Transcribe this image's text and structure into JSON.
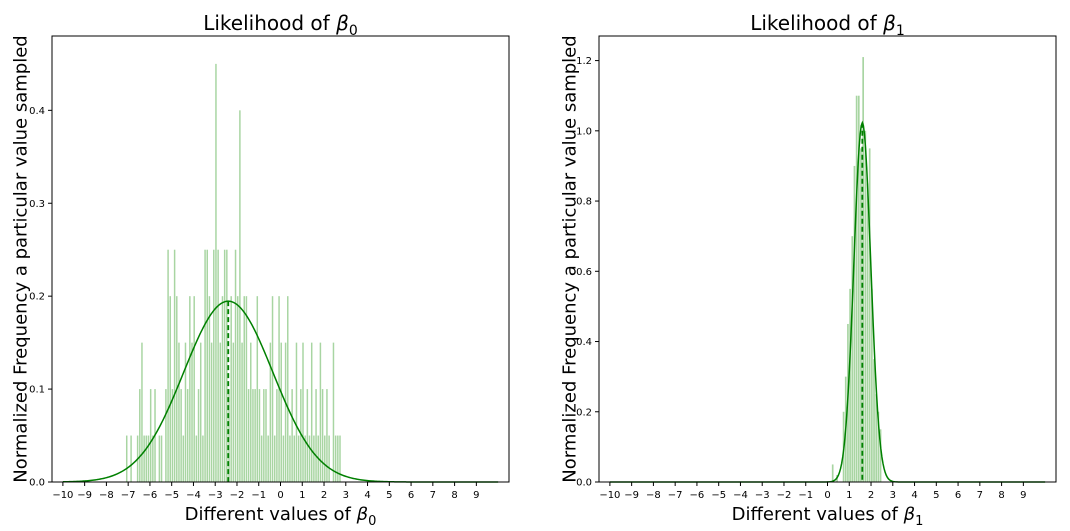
{
  "colors": {
    "bars": "#a8d5a2",
    "curve": "#008000",
    "axis": "#000000"
  },
  "chart_data": [
    {
      "type": "bar",
      "title_prefix": "Likelihood of ",
      "title_symbol": "β",
      "title_subscript": "0",
      "xlabel_prefix": "Different values of ",
      "xlabel_symbol": "β",
      "xlabel_subscript": "0",
      "ylabel": "Normalized Frequency a particular value sampled",
      "xlim": [
        -10.5,
        10.5
      ],
      "ylim": [
        0,
        0.48
      ],
      "xticks": [
        -10,
        -9,
        -8,
        -7,
        -6,
        -5,
        -4,
        -3,
        -2,
        -1,
        0,
        1,
        2,
        3,
        4,
        5,
        6,
        7,
        8,
        9
      ],
      "yticks": [
        0.0,
        0.1,
        0.2,
        0.3,
        0.4
      ],
      "ytick_labels": [
        "0.0",
        "0.1",
        "0.2",
        "0.3",
        "0.4"
      ],
      "bin_width": 0.091,
      "bars": [
        [
          -7.1,
          0.05
        ],
        [
          -6.9,
          0.05
        ],
        [
          -6.6,
          0.05
        ],
        [
          -6.5,
          0.1
        ],
        [
          -6.4,
          0.15
        ],
        [
          -6.3,
          0.05
        ],
        [
          -6.2,
          0.05
        ],
        [
          -6.1,
          0.05
        ],
        [
          -6.0,
          0.1
        ],
        [
          -5.9,
          0.05
        ],
        [
          -5.8,
          0.1
        ],
        [
          -5.6,
          0.05
        ],
        [
          -5.5,
          0.05
        ],
        [
          -5.3,
          0.1
        ],
        [
          -5.2,
          0.25
        ],
        [
          -5.1,
          0.2
        ],
        [
          -5.0,
          0.1
        ],
        [
          -4.9,
          0.25
        ],
        [
          -4.8,
          0.2
        ],
        [
          -4.7,
          0.15
        ],
        [
          -4.6,
          0.1
        ],
        [
          -4.5,
          0.05
        ],
        [
          -4.4,
          0.15
        ],
        [
          -4.3,
          0.1
        ],
        [
          -4.2,
          0.2
        ],
        [
          -4.1,
          0.15
        ],
        [
          -4.0,
          0.2
        ],
        [
          -3.9,
          0.05
        ],
        [
          -3.8,
          0.1
        ],
        [
          -3.7,
          0.15
        ],
        [
          -3.6,
          0.05
        ],
        [
          -3.5,
          0.25
        ],
        [
          -3.4,
          0.25
        ],
        [
          -3.3,
          0.2
        ],
        [
          -3.2,
          0.15
        ],
        [
          -3.1,
          0.25
        ],
        [
          -3.0,
          0.45
        ],
        [
          -2.9,
          0.25
        ],
        [
          -2.8,
          0.15
        ],
        [
          -2.7,
          0.2
        ],
        [
          -2.6,
          0.25
        ],
        [
          -2.5,
          0.25
        ],
        [
          -2.4,
          0.1
        ],
        [
          -2.3,
          0.2
        ],
        [
          -2.2,
          0.15
        ],
        [
          -2.1,
          0.25
        ],
        [
          -2.0,
          0.2
        ],
        [
          -1.9,
          0.4
        ],
        [
          -1.8,
          0.15
        ],
        [
          -1.7,
          0.2
        ],
        [
          -1.6,
          0.2
        ],
        [
          -1.5,
          0.1
        ],
        [
          -1.4,
          0.15
        ],
        [
          -1.3,
          0.1
        ],
        [
          -1.2,
          0.1
        ],
        [
          -1.1,
          0.2
        ],
        [
          -1.0,
          0.1
        ],
        [
          -0.9,
          0.05
        ],
        [
          -0.8,
          0.1
        ],
        [
          -0.7,
          0.1
        ],
        [
          -0.6,
          0.05
        ],
        [
          -0.5,
          0.15
        ],
        [
          -0.4,
          0.2
        ],
        [
          -0.3,
          0.05
        ],
        [
          -0.2,
          0.1
        ],
        [
          -0.1,
          0.2
        ],
        [
          0.0,
          0.15
        ],
        [
          0.1,
          0.05
        ],
        [
          0.2,
          0.15
        ],
        [
          0.3,
          0.2
        ],
        [
          0.4,
          0.05
        ],
        [
          0.5,
          0.1
        ],
        [
          0.6,
          0.05
        ],
        [
          0.7,
          0.15
        ],
        [
          0.8,
          0.05
        ],
        [
          0.9,
          0.1
        ],
        [
          1.0,
          0.15
        ],
        [
          1.1,
          0.05
        ],
        [
          1.2,
          0.1
        ],
        [
          1.3,
          0.05
        ],
        [
          1.4,
          0.15
        ],
        [
          1.5,
          0.05
        ],
        [
          1.6,
          0.1
        ],
        [
          1.7,
          0.05
        ],
        [
          1.8,
          0.15
        ],
        [
          1.9,
          0.1
        ],
        [
          2.0,
          0.05
        ],
        [
          2.1,
          0.1
        ],
        [
          2.2,
          0.05
        ],
        [
          2.4,
          0.15
        ],
        [
          2.5,
          0.05
        ],
        [
          2.6,
          0.05
        ],
        [
          2.7,
          0.05
        ]
      ],
      "curve": {
        "mean": -2.4,
        "sd": 2.05,
        "x_range": [
          -10,
          10
        ]
      },
      "mean_line": -2.4
    },
    {
      "type": "bar",
      "title_prefix": "Likelihood of ",
      "title_symbol": "β",
      "title_subscript": "1",
      "xlabel_prefix": "Different values of ",
      "xlabel_symbol": "β",
      "xlabel_subscript": "1",
      "ylabel": "Normalized Frequency a particular value sampled",
      "xlim": [
        -10.5,
        10.5
      ],
      "ylim": [
        0,
        1.27
      ],
      "xticks": [
        -10,
        -9,
        -8,
        -7,
        -6,
        -5,
        -4,
        -3,
        -2,
        -1,
        0,
        1,
        2,
        3,
        4,
        5,
        6,
        7,
        8,
        9
      ],
      "yticks": [
        0.0,
        0.2,
        0.4,
        0.6,
        0.8,
        1.0,
        1.2
      ],
      "ytick_labels": [
        "0.0",
        "0.2",
        "0.4",
        "0.6",
        "0.8",
        "1.0",
        "1.2"
      ],
      "bin_width": 0.1,
      "bars": [
        [
          0.2,
          0.05
        ],
        [
          0.4,
          0.02
        ],
        [
          0.7,
          0.2
        ],
        [
          0.8,
          0.3
        ],
        [
          0.9,
          0.45
        ],
        [
          1.0,
          0.55
        ],
        [
          1.1,
          0.7
        ],
        [
          1.2,
          0.9
        ],
        [
          1.3,
          1.1
        ],
        [
          1.4,
          1.1
        ],
        [
          1.5,
          0.95
        ],
        [
          1.6,
          1.21
        ],
        [
          1.7,
          1.0
        ],
        [
          1.8,
          0.85
        ],
        [
          1.9,
          0.95
        ],
        [
          2.0,
          0.55
        ],
        [
          2.1,
          0.35
        ],
        [
          2.2,
          0.25
        ],
        [
          2.3,
          0.2
        ],
        [
          2.4,
          0.15
        ]
      ],
      "curve": {
        "mean": 1.6,
        "sd": 0.39,
        "x_range": [
          -10,
          10
        ]
      },
      "mean_line": 1.6
    }
  ]
}
